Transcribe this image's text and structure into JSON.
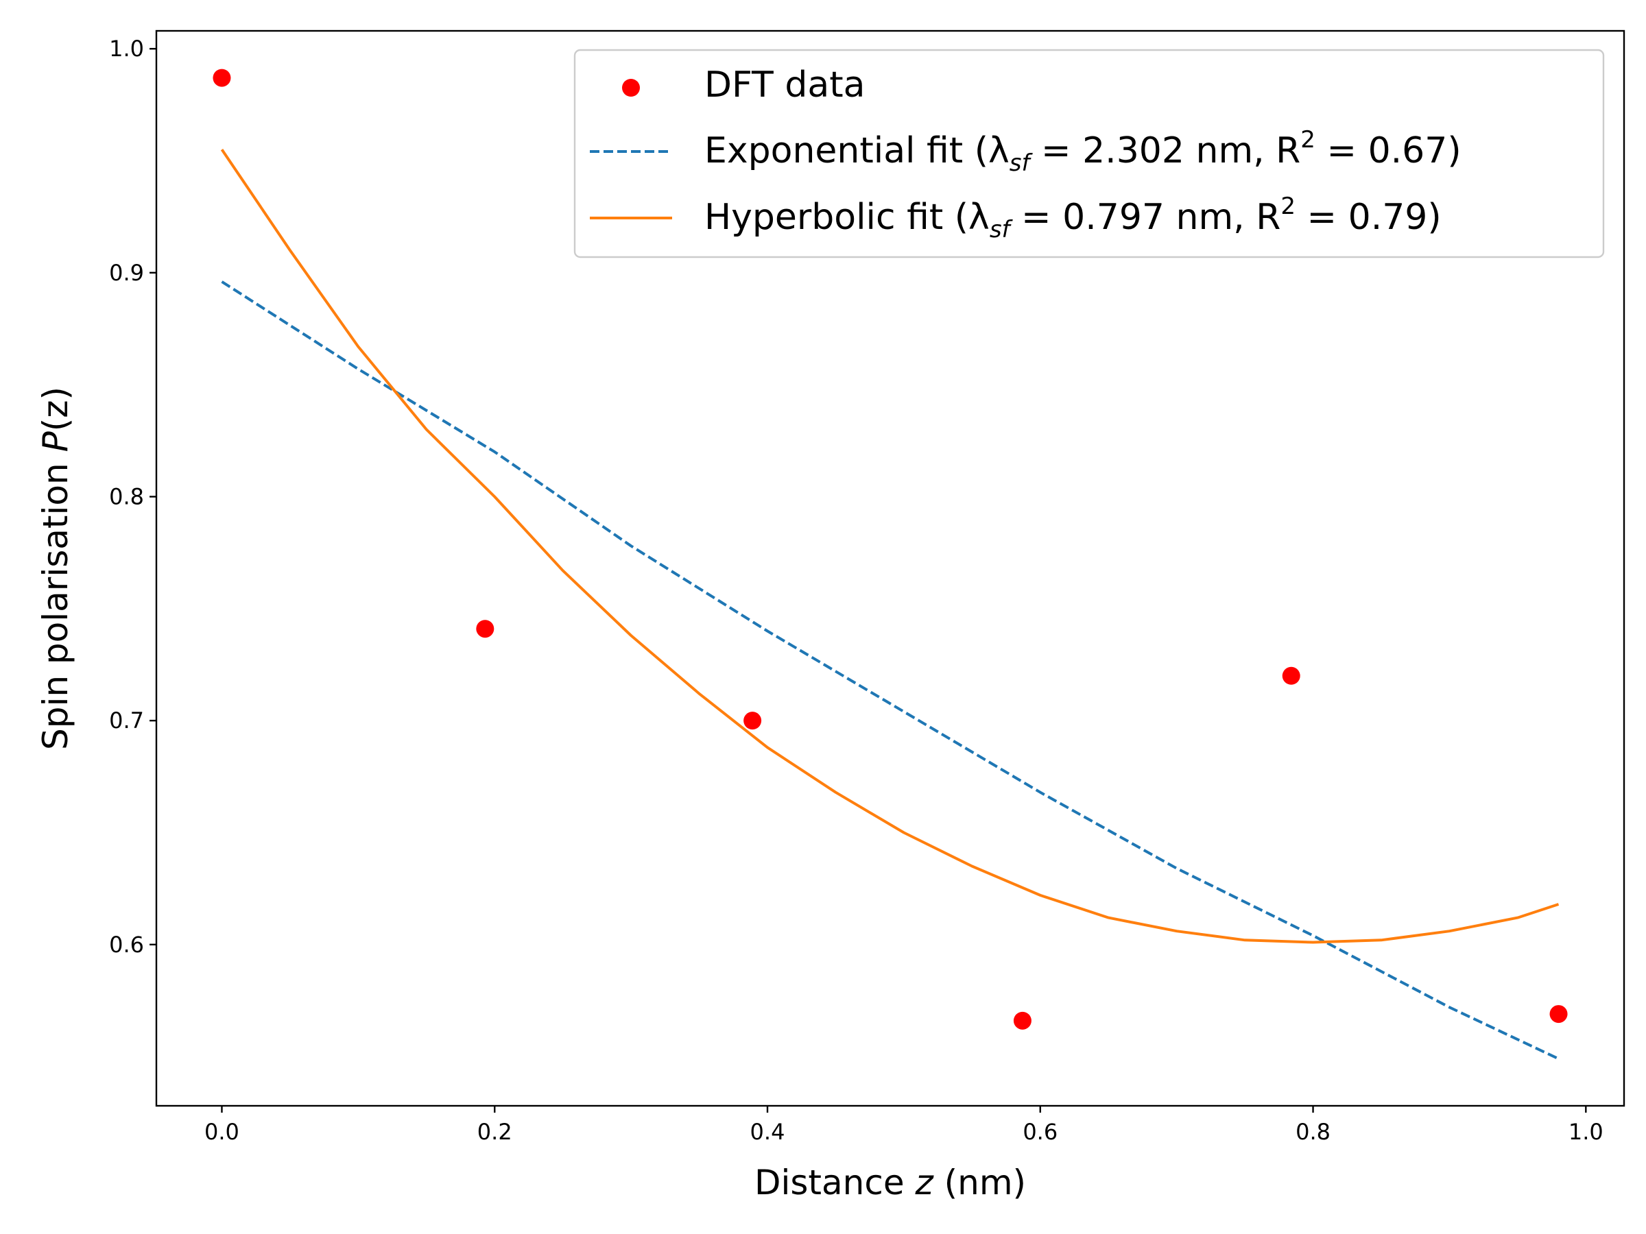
{
  "chart_data": {
    "type": "scatter",
    "title": "",
    "xlabel": {
      "prefix": "Distance ",
      "var": "z",
      "suffix": " (nm)"
    },
    "ylabel": {
      "prefix": "Spin polarisation ",
      "var": "P",
      "suffix": "(z)"
    },
    "xlim": [
      -0.048,
      1.028
    ],
    "ylim": [
      0.528,
      1.008
    ],
    "xticks": [
      0.0,
      0.2,
      0.4,
      0.6,
      0.8,
      1.0
    ],
    "xtick_labels": [
      "0.0",
      "0.2",
      "0.4",
      "0.6",
      "0.8",
      "1.0"
    ],
    "yticks": [
      0.6,
      0.7,
      0.8,
      0.9,
      1.0
    ],
    "ytick_labels": [
      "0.6",
      "0.7",
      "0.8",
      "0.9",
      "1.0"
    ],
    "grid": false,
    "legend_position": "top-right",
    "series": [
      {
        "name": "DFT data",
        "kind": "scatter",
        "color": "#ff0000",
        "x": [
          0.0,
          0.193,
          0.389,
          0.587,
          0.784,
          0.98
        ],
        "y": [
          0.987,
          0.741,
          0.7,
          0.566,
          0.72,
          0.569
        ],
        "legend": {
          "text": "DFT data"
        }
      },
      {
        "name": "Exponential fit",
        "kind": "line",
        "style": "dashed",
        "color": "#1f77b4",
        "x": [
          0.0,
          0.1,
          0.2,
          0.3,
          0.4,
          0.5,
          0.6,
          0.7,
          0.8,
          0.9,
          0.98
        ],
        "y": [
          0.896,
          0.857,
          0.82,
          0.778,
          0.74,
          0.704,
          0.668,
          0.634,
          0.604,
          0.572,
          0.549
        ],
        "legend": {
          "pre": "Exponential fit  (λ",
          "sub": "sf",
          "mid": " = 2.302 nm,  R",
          "sup": "2",
          "post": " = 0.67)"
        }
      },
      {
        "name": "Hyperbolic fit",
        "kind": "line",
        "style": "solid",
        "color": "#ff7f0e",
        "x": [
          0.0,
          0.05,
          0.1,
          0.15,
          0.2,
          0.25,
          0.3,
          0.35,
          0.4,
          0.45,
          0.5,
          0.55,
          0.6,
          0.65,
          0.7,
          0.75,
          0.8,
          0.85,
          0.9,
          0.95,
          0.98
        ],
        "y": [
          0.955,
          0.91,
          0.867,
          0.83,
          0.8,
          0.767,
          0.738,
          0.712,
          0.688,
          0.668,
          0.65,
          0.635,
          0.622,
          0.612,
          0.606,
          0.602,
          0.601,
          0.602,
          0.606,
          0.612,
          0.618
        ],
        "legend": {
          "pre": "Hyperbolic fit (λ",
          "sub": "sf",
          "mid": " = 0.797 nm,  R",
          "sup": "2",
          "post": " = 0.79)"
        }
      }
    ]
  }
}
